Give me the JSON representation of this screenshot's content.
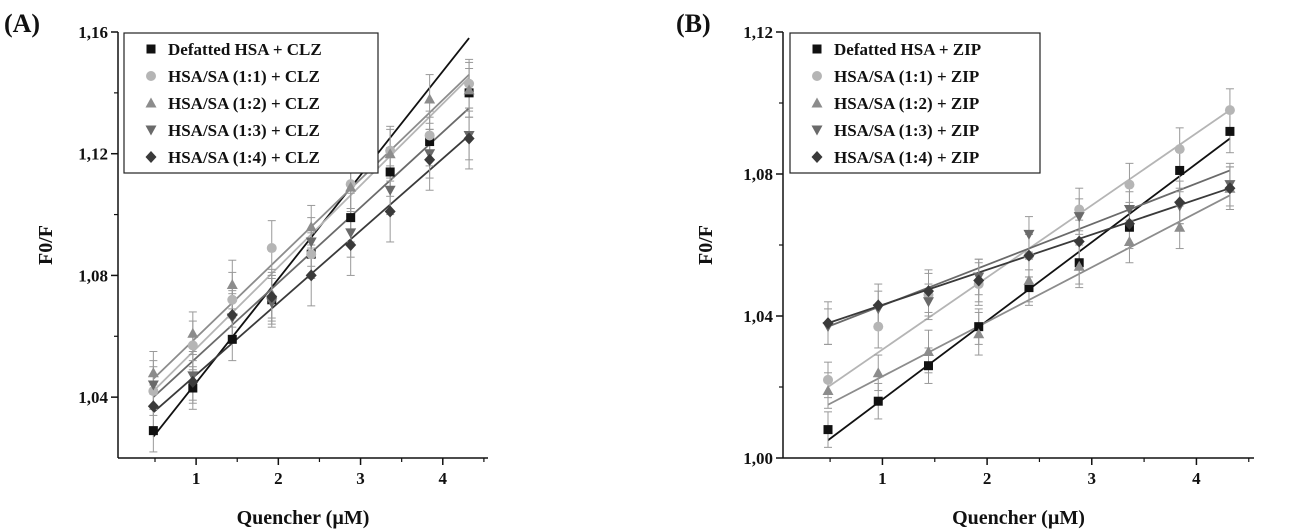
{
  "figure": {
    "panel_tags": [
      "(A)",
      "(B)"
    ]
  },
  "chart_data": [
    {
      "type": "scatter",
      "panel_label": "(A)",
      "xlabel": "Quencher (µM)",
      "ylabel": "F0/F",
      "xlim": [
        0.05,
        4.55
      ],
      "ylim": [
        1.02,
        1.16
      ],
      "x_ticks": [
        1,
        2,
        3,
        4
      ],
      "y_ticks": [
        1.04,
        1.08,
        1.12,
        1.16
      ],
      "x_tick_labels": [
        "1",
        "2",
        "3",
        "4"
      ],
      "y_tick_labels": [
        "1,04",
        "1,08",
        "1,12",
        "1,16"
      ],
      "fit_lines": true,
      "error_bars": true,
      "legend_position": "top-left",
      "x": [
        0.48,
        0.96,
        1.44,
        1.92,
        2.4,
        2.88,
        3.36,
        3.84,
        4.32
      ],
      "series": [
        {
          "name": "Defatted HSA + CLZ",
          "marker": "square",
          "color": "#111111",
          "values": [
            1.029,
            1.043,
            1.059,
            1.072,
            1.087,
            1.099,
            1.114,
            1.124,
            1.14
          ],
          "errors": [
            0.007,
            0.007,
            0.007,
            0.008,
            0.007,
            0.008,
            0.008,
            0.008,
            0.008
          ],
          "fit": [
            1.027,
            1.158
          ]
        },
        {
          "name": "HSA/SA (1:1) + CLZ",
          "marker": "circle",
          "color": "#b5b5b5",
          "values": [
            1.042,
            1.057,
            1.072,
            1.089,
            1.087,
            1.11,
            1.121,
            1.126,
            1.143
          ],
          "errors": [
            0.008,
            0.008,
            0.009,
            0.009,
            0.008,
            0.008,
            0.008,
            0.008,
            0.008
          ],
          "fit": [
            1.042,
            1.145
          ]
        },
        {
          "name": "HSA/SA (1:2) + CLZ",
          "marker": "triangle-up",
          "color": "#8c8c8c",
          "values": [
            1.048,
            1.061,
            1.077,
            1.074,
            1.096,
            1.109,
            1.12,
            1.138,
            1.141
          ],
          "errors": [
            0.007,
            0.007,
            0.008,
            0.008,
            0.007,
            0.008,
            0.008,
            0.008,
            0.009
          ],
          "fit": [
            1.046,
            1.146
          ]
        },
        {
          "name": "HSA/SA (1:3) + CLZ",
          "marker": "triangle-down",
          "color": "#6a6a6a",
          "values": [
            1.044,
            1.047,
            1.066,
            1.071,
            1.091,
            1.094,
            1.108,
            1.12,
            1.126
          ],
          "errors": [
            0.008,
            0.008,
            0.008,
            0.008,
            0.008,
            0.008,
            0.008,
            0.008,
            0.008
          ],
          "fit": [
            1.04,
            1.135
          ]
        },
        {
          "name": "HSA/SA (1:4) + CLZ",
          "marker": "diamond",
          "color": "#3a3a3a",
          "values": [
            1.037,
            1.045,
            1.067,
            1.073,
            1.08,
            1.09,
            1.101,
            1.118,
            1.125
          ],
          "errors": [
            0.007,
            0.007,
            0.008,
            0.008,
            0.01,
            0.01,
            0.01,
            0.01,
            0.01
          ],
          "fit": [
            1.035,
            1.126
          ]
        }
      ]
    },
    {
      "type": "scatter",
      "panel_label": "(B)",
      "xlabel": "Quencher (µM)",
      "ylabel": "F0/F",
      "xlim": [
        0.05,
        4.55
      ],
      "ylim": [
        1.0,
        1.12
      ],
      "x_ticks": [
        1,
        2,
        3,
        4
      ],
      "y_ticks": [
        1.0,
        1.04,
        1.08,
        1.12
      ],
      "x_tick_labels": [
        "1",
        "2",
        "3",
        "4"
      ],
      "y_tick_labels": [
        "1,00",
        "1,04",
        "1,08",
        "1,12"
      ],
      "fit_lines": true,
      "error_bars": true,
      "legend_position": "top-left",
      "x": [
        0.48,
        0.96,
        1.44,
        1.92,
        2.4,
        2.88,
        3.36,
        3.84,
        4.32
      ],
      "series": [
        {
          "name": "Defatted HSA + ZIP",
          "marker": "square",
          "color": "#111111",
          "values": [
            1.008,
            1.016,
            1.026,
            1.037,
            1.048,
            1.055,
            1.065,
            1.081,
            1.092
          ],
          "errors": [
            0.005,
            0.005,
            0.005,
            0.005,
            0.005,
            0.006,
            0.006,
            0.006,
            0.006
          ],
          "fit": [
            1.005,
            1.09
          ]
        },
        {
          "name": "HSA/SA (1:1) + ZIP",
          "marker": "circle",
          "color": "#b5b5b5",
          "values": [
            1.022,
            1.037,
            1.046,
            1.049,
            1.057,
            1.07,
            1.077,
            1.087,
            1.098
          ],
          "errors": [
            0.005,
            0.006,
            0.006,
            0.006,
            0.006,
            0.006,
            0.006,
            0.006,
            0.006
          ],
          "fit": [
            1.02,
            1.098
          ]
        },
        {
          "name": "HSA/SA (1:2) + ZIP",
          "marker": "triangle-up",
          "color": "#8c8c8c",
          "values": [
            1.019,
            1.024,
            1.03,
            1.035,
            1.05,
            1.054,
            1.061,
            1.065,
            1.076
          ],
          "errors": [
            0.005,
            0.005,
            0.006,
            0.006,
            0.006,
            0.006,
            0.006,
            0.006,
            0.006
          ],
          "fit": [
            1.015,
            1.074
          ]
        },
        {
          "name": "HSA/SA (1:3) + ZIP",
          "marker": "triangle-down",
          "color": "#6a6a6a",
          "values": [
            1.037,
            1.042,
            1.044,
            1.051,
            1.063,
            1.068,
            1.07,
            1.071,
            1.077
          ],
          "errors": [
            0.005,
            0.005,
            0.005,
            0.005,
            0.005,
            0.005,
            0.005,
            0.005,
            0.006
          ],
          "fit": [
            1.037,
            1.081
          ]
        },
        {
          "name": "HSA/SA (1:4) + ZIP",
          "marker": "diamond",
          "color": "#3a3a3a",
          "values": [
            1.038,
            1.043,
            1.047,
            1.05,
            1.057,
            1.061,
            1.066,
            1.072,
            1.076
          ],
          "errors": [
            0.006,
            0.006,
            0.006,
            0.006,
            0.006,
            0.006,
            0.006,
            0.006,
            0.006
          ],
          "fit": [
            1.038,
            1.076
          ]
        }
      ]
    }
  ]
}
